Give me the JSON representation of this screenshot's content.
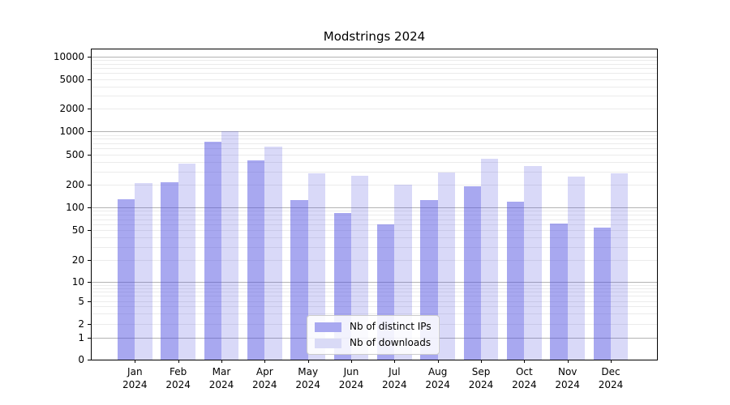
{
  "chart_data": {
    "type": "bar",
    "title": "Modstrings 2024",
    "categories": [
      "Jan 2024",
      "Feb 2024",
      "Mar 2024",
      "Apr 2024",
      "May 2024",
      "Jun 2024",
      "Jul 2024",
      "Aug 2024",
      "Sep 2024",
      "Oct 2024",
      "Nov 2024",
      "Dec 2024"
    ],
    "months": [
      "Jan",
      "Feb",
      "Mar",
      "Apr",
      "May",
      "Jun",
      "Jul",
      "Aug",
      "Sep",
      "Oct",
      "Nov",
      "Dec"
    ],
    "year": "2024",
    "series": [
      {
        "name": "Nb of distinct IPs",
        "values": [
          130,
          215,
          740,
          420,
          125,
          85,
          60,
          125,
          190,
          120,
          62,
          54
        ],
        "color": "rgba(81,81,225,0.5)",
        "swatch_color": "#a8a8f0"
      },
      {
        "name": "Nb of downloads",
        "values": [
          210,
          380,
          1000,
          630,
          285,
          265,
          200,
          290,
          435,
          355,
          255,
          285
        ],
        "color": "rgba(81,81,225,0.22)",
        "swatch_color": "#d9daf6"
      }
    ],
    "y_ticks": [
      0,
      1,
      2,
      5,
      10,
      20,
      50,
      100,
      200,
      500,
      1000,
      2000,
      5000,
      10000
    ],
    "y_scale": "symlog",
    "ylim": [
      0,
      12000
    ],
    "xlabel": "",
    "ylabel": "",
    "grid": {
      "major": true,
      "minor": true
    },
    "legend_position": "lower center inside axes"
  },
  "colors": {
    "background": "#ffffff",
    "spine": "#000000",
    "grid_major": "#b3b3b3",
    "grid_minor": "#ebebeb",
    "legend_border": "#cccccc",
    "legend_background": "rgba(255,255,255,0.85)",
    "text": "#000000"
  }
}
